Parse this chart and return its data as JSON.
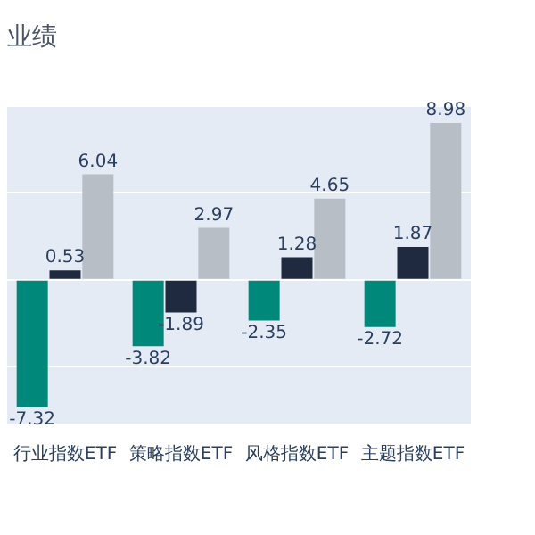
{
  "chart_data": {
    "type": "bar",
    "title": "业绩",
    "categories": [
      "行业指数ETF",
      "策略指数ETF",
      "风格指数ETF",
      "主题指数ETF"
    ],
    "series": [
      {
        "color": "#00897b",
        "values": [
          -7.32,
          -3.82,
          -2.35,
          -2.72
        ]
      },
      {
        "color": "#1f2a40",
        "values": [
          0.53,
          -1.89,
          1.28,
          1.87
        ]
      },
      {
        "color": "#b8bec6",
        "values": [
          6.04,
          2.97,
          4.65,
          8.98
        ]
      }
    ],
    "ylim": [
      -8.3,
      9.9
    ],
    "yticks": [
      {
        "value": -5,
        "label": null
      },
      {
        "value": 0,
        "label": null
      },
      {
        "value": 5,
        "label": null
      }
    ],
    "grid": "y",
    "tick_labels": "x",
    "data_labels": true
  }
}
